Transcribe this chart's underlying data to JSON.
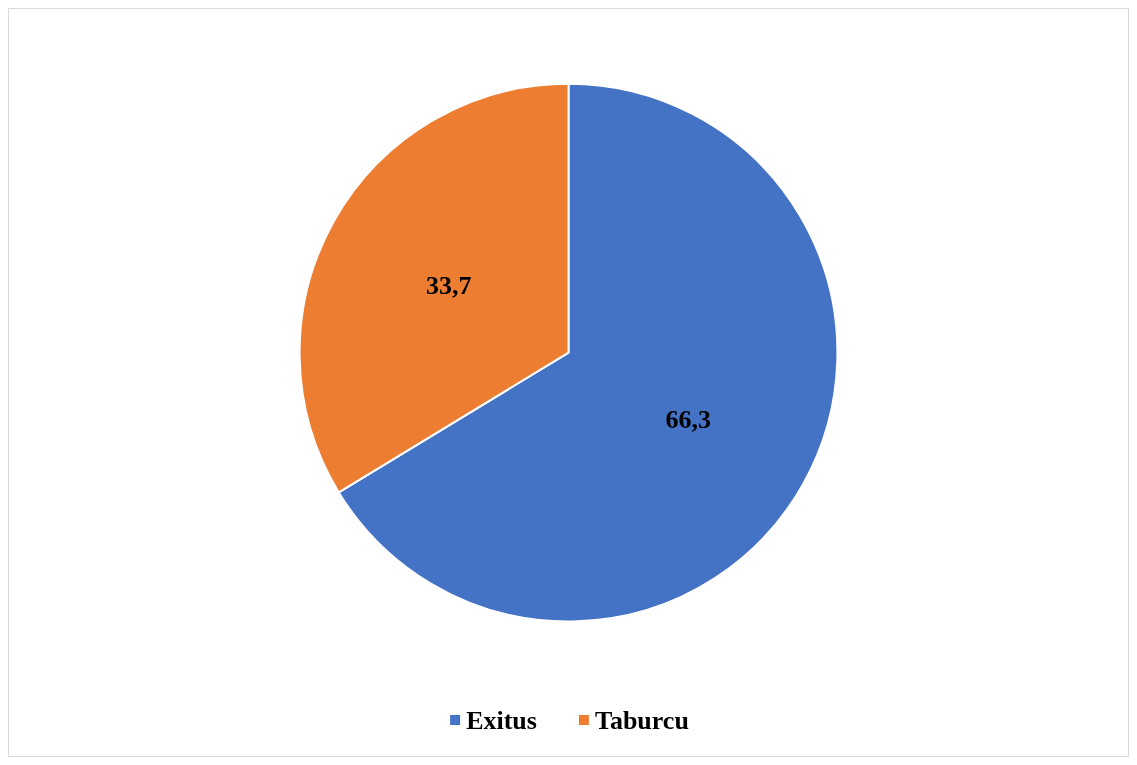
{
  "chart_data": {
    "type": "pie",
    "categories": [
      "Exitus",
      "Taburcu"
    ],
    "values": [
      66.3,
      33.7
    ],
    "colors": [
      "#4472c4",
      "#ed7d31"
    ],
    "value_labels": [
      "66,3",
      "33,7"
    ],
    "legend": "bottom"
  }
}
